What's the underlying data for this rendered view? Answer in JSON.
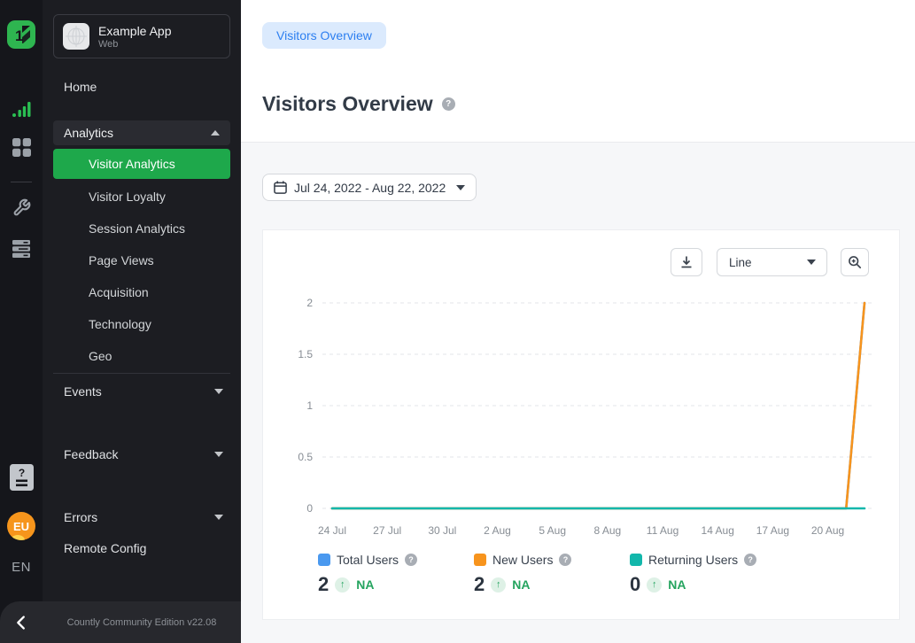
{
  "app": {
    "name": "Example App",
    "type": "Web"
  },
  "rail": {
    "language": "EN",
    "avatar_initials": "EU"
  },
  "icons": {
    "help_glyph": "?"
  },
  "sidebar": {
    "home": "Home",
    "analytics": {
      "label": "Analytics",
      "items": [
        "Visitor Analytics",
        "Visitor Loyalty",
        "Session Analytics",
        "Page Views",
        "Acquisition",
        "Technology",
        "Geo"
      ],
      "active_item": "Visitor Analytics"
    },
    "groups": [
      {
        "label": "Events"
      },
      {
        "label": "Feedback"
      },
      {
        "label": "Errors"
      }
    ],
    "remote_config": "Remote Config",
    "footer": "Countly Community Edition v22.08"
  },
  "header": {
    "tab": "Visitors Overview",
    "title": "Visitors Overview"
  },
  "filters": {
    "date_range": "Jul 24, 2022 - Aug 22, 2022"
  },
  "toolbar": {
    "chart_type": "Line"
  },
  "colors": {
    "accent_green": "#1ea84b",
    "total_users": "#4a99ef",
    "new_users": "#f7941d",
    "returning_users": "#12b7ab",
    "pill_bg": "#dbeafd",
    "pill_text": "#2d7ff0"
  },
  "chart_data": {
    "type": "line",
    "title": "Visitors Overview",
    "x": [
      "24 Jul",
      "25 Jul",
      "26 Jul",
      "27 Jul",
      "28 Jul",
      "29 Jul",
      "30 Jul",
      "31 Jul",
      "1 Aug",
      "2 Aug",
      "3 Aug",
      "4 Aug",
      "5 Aug",
      "6 Aug",
      "7 Aug",
      "8 Aug",
      "9 Aug",
      "10 Aug",
      "11 Aug",
      "12 Aug",
      "13 Aug",
      "14 Aug",
      "15 Aug",
      "16 Aug",
      "17 Aug",
      "18 Aug",
      "19 Aug",
      "20 Aug",
      "21 Aug",
      "22 Aug"
    ],
    "x_ticks": [
      "24 Jul",
      "27 Jul",
      "30 Jul",
      "2 Aug",
      "5 Aug",
      "8 Aug",
      "11 Aug",
      "14 Aug",
      "17 Aug",
      "20 Aug"
    ],
    "x_tick_days": [
      0,
      3,
      6,
      9,
      12,
      15,
      18,
      21,
      24,
      27
    ],
    "ylim": [
      0,
      2
    ],
    "yticks": [
      0,
      0.5,
      1,
      1.5,
      2
    ],
    "grid": "dashed-horizontal",
    "legend_position": "bottom",
    "series": [
      {
        "name": "Total Users",
        "color": "#4a99ef",
        "values": [
          0,
          0,
          0,
          0,
          0,
          0,
          0,
          0,
          0,
          0,
          0,
          0,
          0,
          0,
          0,
          0,
          0,
          0,
          0,
          0,
          0,
          0,
          0,
          0,
          0,
          0,
          0,
          0,
          0,
          2
        ]
      },
      {
        "name": "New Users",
        "color": "#f7941d",
        "values": [
          0,
          0,
          0,
          0,
          0,
          0,
          0,
          0,
          0,
          0,
          0,
          0,
          0,
          0,
          0,
          0,
          0,
          0,
          0,
          0,
          0,
          0,
          0,
          0,
          0,
          0,
          0,
          0,
          0,
          2
        ]
      },
      {
        "name": "Returning Users",
        "color": "#12b7ab",
        "values": [
          0,
          0,
          0,
          0,
          0,
          0,
          0,
          0,
          0,
          0,
          0,
          0,
          0,
          0,
          0,
          0,
          0,
          0,
          0,
          0,
          0,
          0,
          0,
          0,
          0,
          0,
          0,
          0,
          0,
          0
        ]
      }
    ]
  },
  "legend": [
    {
      "name": "Total Users",
      "value": "2",
      "change": "NA",
      "color": "#4a99ef"
    },
    {
      "name": "New Users",
      "value": "2",
      "change": "NA",
      "color": "#f7941d"
    },
    {
      "name": "Returning Users",
      "value": "0",
      "change": "NA",
      "color": "#12b7ab"
    }
  ]
}
